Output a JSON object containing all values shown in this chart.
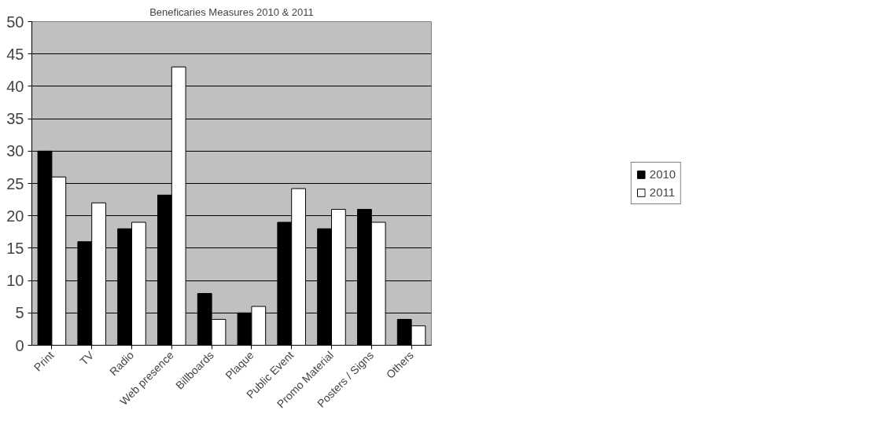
{
  "chart_data": {
    "type": "bar",
    "title": "Beneficaries Measures 2010 & 2011",
    "categories": [
      "Print",
      "TV",
      "Radio",
      "Web presence",
      "Billboards",
      "Plaque",
      "Public Event",
      "Promo Material",
      "Posters / Signs",
      "Others"
    ],
    "series": [
      {
        "name": "2010",
        "color": "#000000",
        "values": [
          30,
          16,
          18,
          23.2,
          8,
          5,
          19,
          18,
          21,
          4
        ]
      },
      {
        "name": "2011",
        "color": "#ffffff",
        "values": [
          26,
          22,
          19,
          43,
          4,
          6,
          24.2,
          21,
          19,
          3
        ]
      }
    ],
    "ylim": [
      0,
      50
    ],
    "yticks": [
      0,
      5,
      10,
      15,
      20,
      25,
      30,
      35,
      40,
      45,
      50
    ],
    "grid": "y",
    "legend": "right"
  }
}
